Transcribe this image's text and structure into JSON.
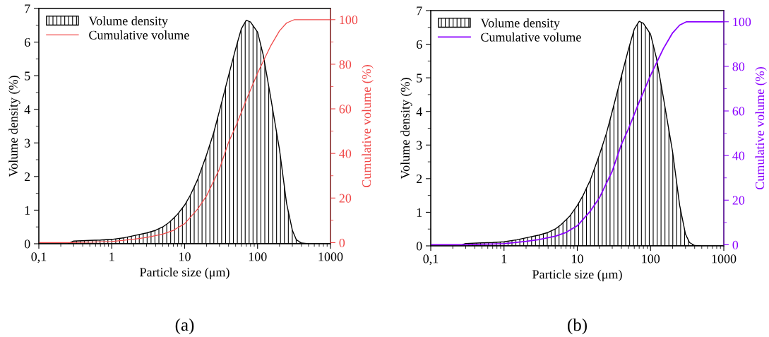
{
  "chart_data": [
    {
      "type": "area",
      "xlabel": "Particle size (μm)",
      "ylabel": "Volume density (%)",
      "y2label": "Cumulative volume (%)",
      "annotations": [
        "(a)"
      ],
      "legend": "top left",
      "grid": false,
      "log": "x",
      "xlim": [
        0.1,
        1000
      ],
      "xticks": [
        {
          "value": 0.1,
          "label": "0,1"
        },
        1,
        10,
        100,
        1000
      ],
      "ylim": [
        0,
        7
      ],
      "yticks": [
        0,
        1,
        2,
        3,
        4,
        5,
        6,
        7
      ],
      "y2lim": [
        -0.5,
        105
      ],
      "y2ticks": [
        0,
        20,
        40,
        60,
        80,
        100
      ],
      "series": [
        {
          "name": "Volume density",
          "color": "#000000",
          "x": [
            0.1,
            0.25,
            0.28,
            0.3,
            0.5,
            0.7,
            1,
            1.5,
            2,
            3,
            4,
            5,
            6,
            7,
            8,
            10,
            12,
            15,
            20,
            25,
            30,
            40,
            50,
            60,
            70,
            80,
            100,
            120,
            150,
            200,
            250,
            300,
            340,
            400,
            500,
            1000
          ],
          "values": [
            0,
            0,
            0.05,
            0.08,
            0.1,
            0.11,
            0.13,
            0.18,
            0.24,
            0.32,
            0.4,
            0.5,
            0.62,
            0.75,
            0.88,
            1.15,
            1.45,
            1.9,
            2.65,
            3.3,
            3.95,
            5.0,
            5.8,
            6.4,
            6.65,
            6.6,
            6.3,
            5.6,
            4.4,
            2.8,
            1.2,
            0.4,
            0.12,
            0.02,
            0,
            0
          ]
        },
        {
          "name": "Cumulative volume",
          "type": "line",
          "axis": "y2",
          "color": "#f04848",
          "x": [
            0.1,
            0.3,
            1,
            2,
            3,
            5,
            7,
            10,
            15,
            20,
            30,
            40,
            50,
            70,
            100,
            150,
            200,
            250,
            320,
            1000
          ],
          "values": [
            0,
            0,
            0.5,
            1.5,
            2.3,
            3.8,
            5.5,
            8.5,
            15,
            21,
            33,
            45,
            52,
            64,
            76,
            88,
            95,
            98.5,
            100,
            100
          ]
        }
      ]
    },
    {
      "type": "area",
      "xlabel": "Particle size (μm)",
      "ylabel": "Volume density (%)",
      "y2label": "Cumulative volume (%)",
      "annotations": [
        "(b)"
      ],
      "legend": "top left",
      "grid": false,
      "log": "x",
      "xlim": [
        0.1,
        1000
      ],
      "xticks": [
        {
          "value": 0.1,
          "label": "0,1"
        },
        1,
        10,
        100,
        1000
      ],
      "ylim": [
        0,
        7
      ],
      "yticks": [
        0,
        1,
        2,
        3,
        4,
        5,
        6,
        7
      ],
      "y2lim": [
        -0.5,
        105
      ],
      "y2ticks": [
        0,
        20,
        40,
        60,
        80,
        100
      ],
      "series": [
        {
          "name": "Volume density",
          "color": "#000000",
          "x": [
            0.1,
            0.25,
            0.28,
            0.3,
            0.5,
            0.7,
            1,
            1.5,
            2,
            3,
            4,
            5,
            6,
            7,
            8,
            10,
            12,
            15,
            20,
            25,
            30,
            40,
            50,
            60,
            70,
            80,
            100,
            120,
            150,
            200,
            250,
            300,
            340,
            400,
            500,
            1000
          ],
          "values": [
            0,
            0,
            0.05,
            0.07,
            0.09,
            0.1,
            0.12,
            0.18,
            0.24,
            0.32,
            0.4,
            0.5,
            0.63,
            0.77,
            0.9,
            1.2,
            1.5,
            1.95,
            2.7,
            3.35,
            4.0,
            5.05,
            5.85,
            6.45,
            6.68,
            6.62,
            6.3,
            5.6,
            4.4,
            2.8,
            1.2,
            0.35,
            0.1,
            0.01,
            0,
            0
          ]
        },
        {
          "name": "Cumulative volume",
          "type": "line",
          "axis": "y2",
          "color": "#8a00ff",
          "x": [
            0.1,
            0.3,
            1,
            2,
            3,
            5,
            7,
            10,
            15,
            20,
            30,
            40,
            50,
            70,
            100,
            150,
            200,
            250,
            310,
            1000
          ],
          "values": [
            0,
            0,
            0.5,
            1.5,
            2.3,
            3.8,
            5.5,
            8.5,
            15,
            21,
            33,
            45,
            52,
            64,
            76,
            88,
            95,
            98.5,
            100,
            100
          ]
        }
      ]
    }
  ]
}
